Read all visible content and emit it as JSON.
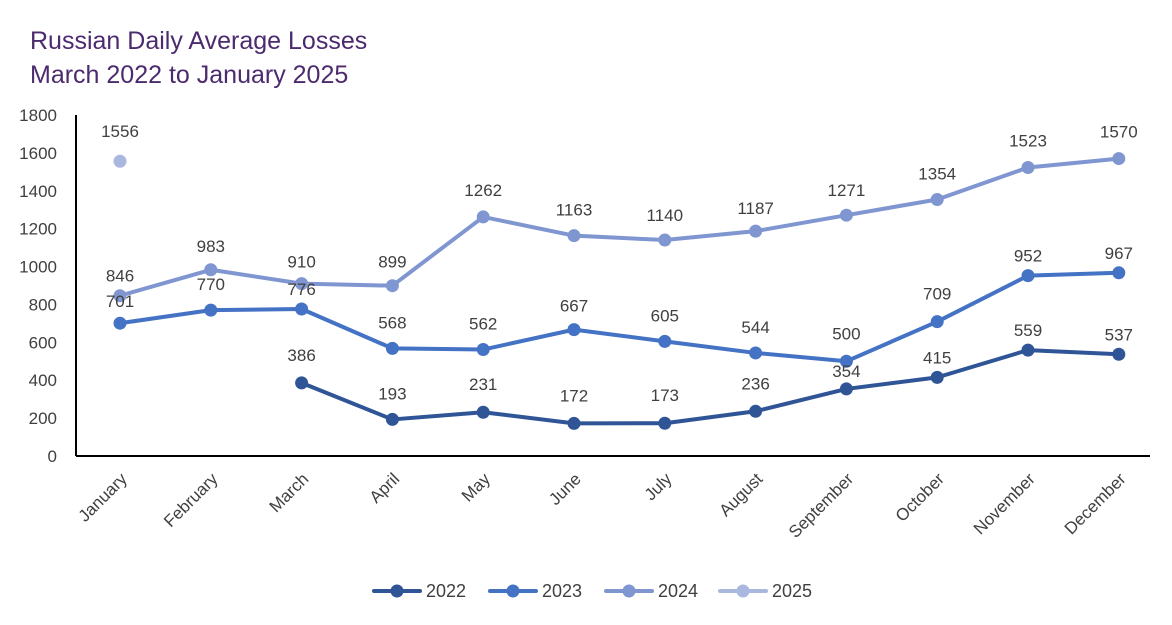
{
  "chart_data": {
    "type": "line",
    "title": "Russian Daily Average Losses",
    "subtitle": "March 2022 to January 2025",
    "xlabel": "",
    "ylabel": "",
    "ylim": [
      0,
      1800
    ],
    "yticks": [
      0,
      200,
      400,
      600,
      800,
      1000,
      1200,
      1400,
      1600,
      1800
    ],
    "grid": false,
    "legend_position": "bottom",
    "categories": [
      "January",
      "February",
      "March",
      "April",
      "May",
      "June",
      "July",
      "August",
      "September",
      "October",
      "November",
      "December"
    ],
    "series": [
      {
        "name": "2022",
        "color": "#2f5597",
        "values": [
          null,
          null,
          386,
          193,
          231,
          172,
          173,
          236,
          354,
          415,
          559,
          537
        ]
      },
      {
        "name": "2023",
        "color": "#4472c4",
        "values": [
          701,
          770,
          776,
          568,
          562,
          667,
          605,
          544,
          500,
          709,
          952,
          967
        ]
      },
      {
        "name": "2024",
        "color": "#7f96d1",
        "values": [
          846,
          983,
          910,
          899,
          1262,
          1163,
          1140,
          1187,
          1271,
          1354,
          1523,
          1570
        ]
      },
      {
        "name": "2025",
        "color": "#aab8e0",
        "values": [
          1556,
          null,
          null,
          null,
          null,
          null,
          null,
          null,
          null,
          null,
          null,
          null
        ]
      }
    ]
  }
}
